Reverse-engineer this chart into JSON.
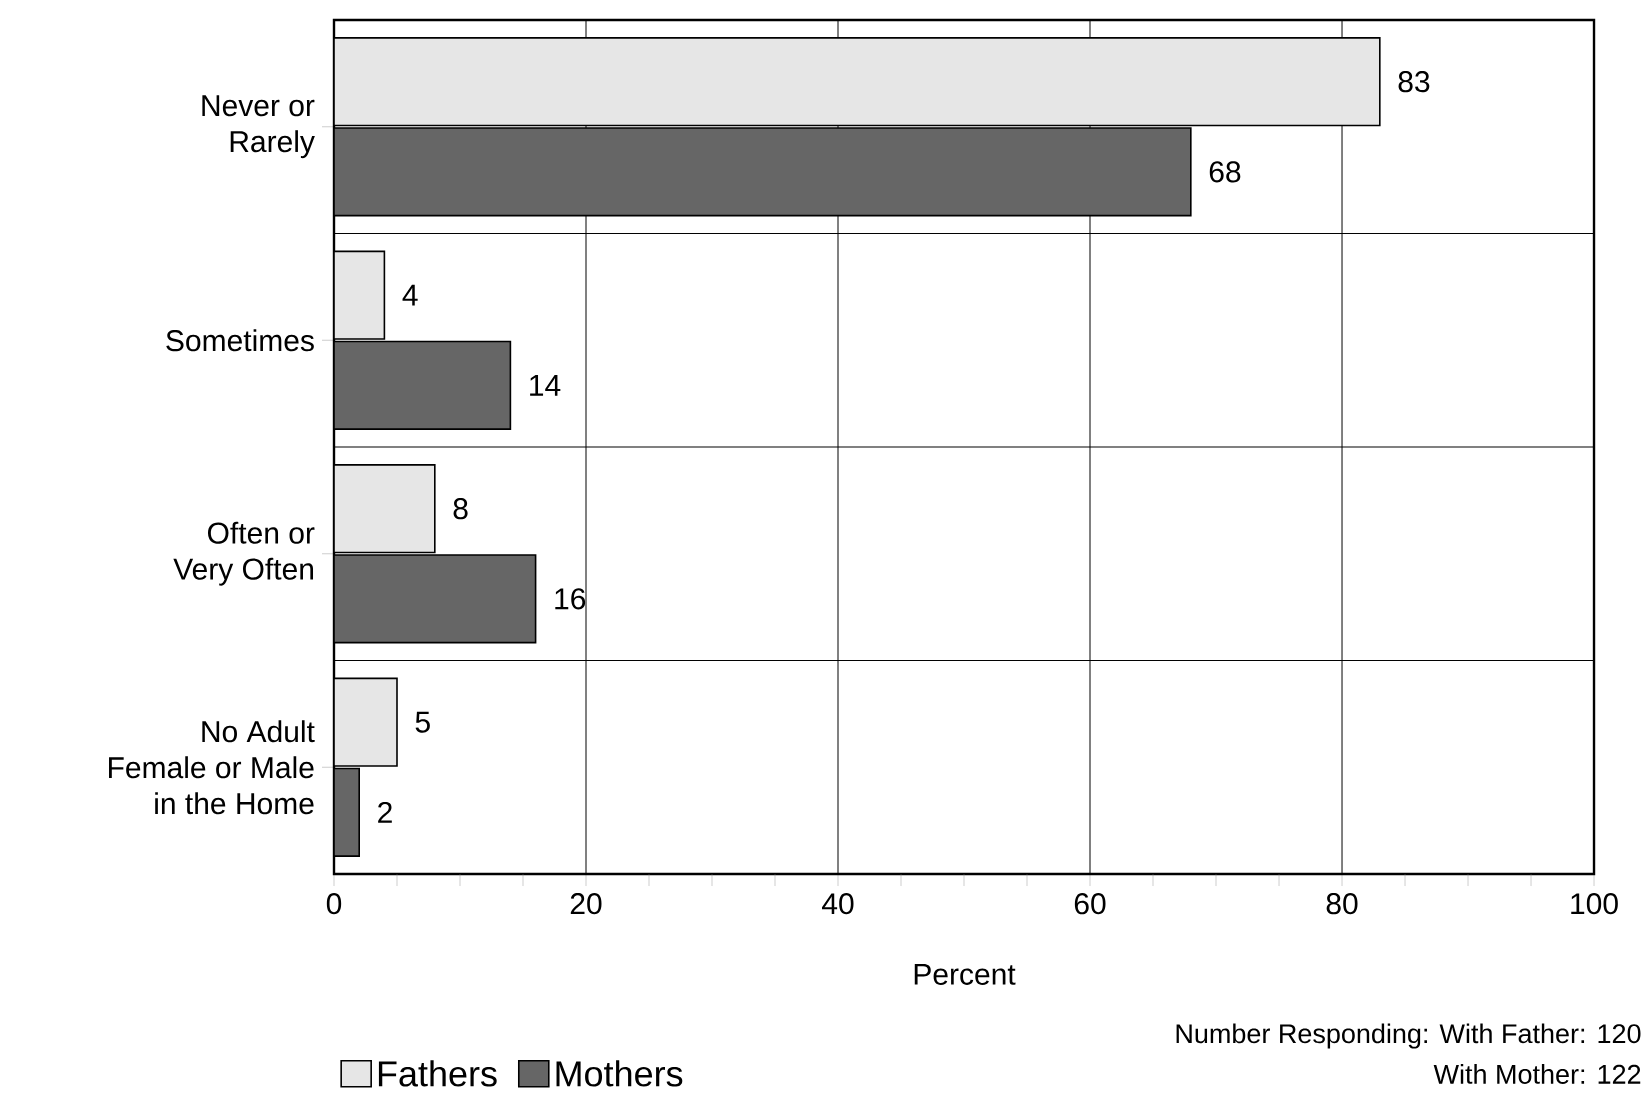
{
  "chart_data": {
    "type": "bar",
    "orientation": "horizontal",
    "categories": [
      "Never or\nRarely",
      "Sometimes",
      "Often or\nVery Often",
      "No Adult\nFemale or Male\nin the Home"
    ],
    "series": [
      {
        "name": "Fathers",
        "color": "#e6e6e6",
        "values": [
          83,
          4,
          8,
          5
        ]
      },
      {
        "name": "Mothers",
        "color": "#666666",
        "values": [
          68,
          14,
          16,
          2
        ]
      }
    ],
    "xlabel": "Percent",
    "xlim": [
      0,
      100
    ],
    "xticks": [
      0,
      {
        "value": 5,
        "label": null
      },
      {
        "value": 10,
        "label": null
      },
      {
        "value": 15,
        "label": null
      },
      20,
      {
        "value": 25,
        "label": null
      },
      {
        "value": 30,
        "label": null
      },
      {
        "value": 35,
        "label": null
      },
      40,
      {
        "value": 45,
        "label": null
      },
      {
        "value": 50,
        "label": null
      },
      {
        "value": 55,
        "label": null
      },
      60,
      {
        "value": 65,
        "label": null
      },
      {
        "value": 70,
        "label": null
      },
      {
        "value": 75,
        "label": null
      },
      80,
      {
        "value": 85,
        "label": null
      },
      {
        "value": 90,
        "label": null
      },
      {
        "value": 95,
        "label": null
      },
      100
    ],
    "data_labels": true,
    "grid": true,
    "legend": "bottom",
    "annotations": [
      "Number Responding: With Father: 120",
      "With Mother: 122"
    ]
  }
}
